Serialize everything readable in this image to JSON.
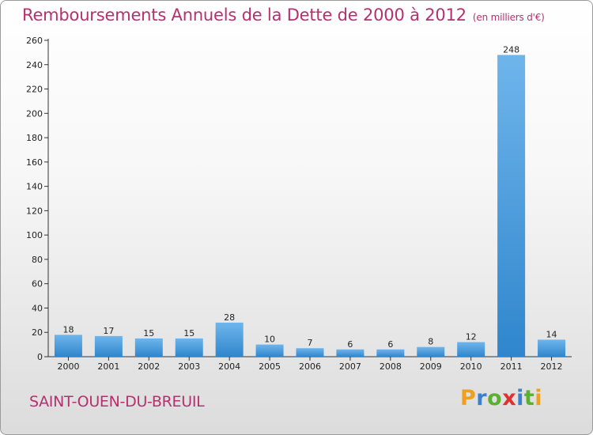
{
  "title": "Remboursements Annuels de la Dette de 2000 à 2012",
  "unit_note": "(en milliers d'€)",
  "commune": "SAINT-OUEN-DU-BREUIL",
  "logo": {
    "letters": [
      "P",
      "r",
      "o",
      "x",
      "i",
      "t",
      "i"
    ],
    "colors": [
      "#f0a020",
      "#3a7fd0",
      "#5cb030",
      "#e03030",
      "#3a7fd0",
      "#5cb030",
      "#f0a020"
    ]
  },
  "colors": {
    "title": "#b5306e",
    "bar_light": "#6fb5ec",
    "bar_dark": "#2f86cc"
  },
  "chart_data": {
    "type": "bar",
    "title": "Remboursements Annuels de la Dette de 2000 à 2012",
    "categories": [
      "2000",
      "2001",
      "2002",
      "2003",
      "2004",
      "2005",
      "2006",
      "2007",
      "2008",
      "2009",
      "2010",
      "2011",
      "2012"
    ],
    "values": [
      18,
      17,
      15,
      15,
      28,
      10,
      7,
      6,
      6,
      8,
      12,
      248,
      14
    ],
    "ylim": [
      0,
      260
    ],
    "yticks": [
      0,
      20,
      40,
      60,
      80,
      100,
      120,
      140,
      160,
      180,
      200,
      220,
      240,
      260
    ],
    "grid": false,
    "data_labels": true
  }
}
